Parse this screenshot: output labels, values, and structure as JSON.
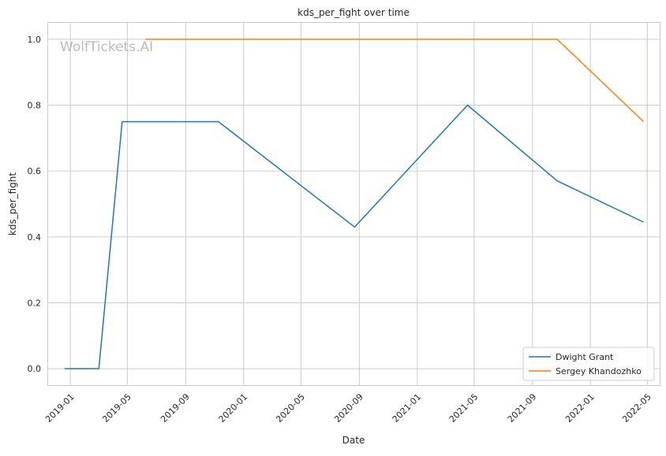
{
  "chart_data": {
    "type": "line",
    "title": "kds_per_fight over time",
    "xlabel": "Date",
    "ylabel": "kds_per_fight",
    "watermark": "WolfTickets.AI",
    "x_ticks": [
      "2019-01",
      "2019-05",
      "2019-09",
      "2020-01",
      "2020-05",
      "2020-09",
      "2021-01",
      "2021-05",
      "2021-09",
      "2022-01",
      "2022-05"
    ],
    "y_ticks": [
      "0.0",
      "0.2",
      "0.4",
      "0.6",
      "0.8",
      "1.0"
    ],
    "xlim": [
      "2018-11-15",
      "2022-05-27"
    ],
    "ylim": [
      -0.05,
      1.05
    ],
    "grid": true,
    "legend_position": "bottom-right",
    "series": [
      {
        "name": "Dwight Grant",
        "color": "#1f77b4",
        "points": [
          {
            "x": "2018-12-20",
            "y": 0.0
          },
          {
            "x": "2019-03-02",
            "y": 0.0
          },
          {
            "x": "2019-04-20",
            "y": 0.75
          },
          {
            "x": "2019-11-09",
            "y": 0.75
          },
          {
            "x": "2020-08-22",
            "y": 0.43
          },
          {
            "x": "2021-04-17",
            "y": 0.8
          },
          {
            "x": "2021-10-23",
            "y": 0.57
          },
          {
            "x": "2022-04-23",
            "y": 0.445
          }
        ]
      },
      {
        "name": "Sergey Khandozhko",
        "color": "#ff7f0e",
        "points": [
          {
            "x": "2019-06-08",
            "y": 1.0
          },
          {
            "x": "2021-10-23",
            "y": 1.0
          },
          {
            "x": "2022-04-23",
            "y": 0.75
          }
        ]
      }
    ]
  }
}
